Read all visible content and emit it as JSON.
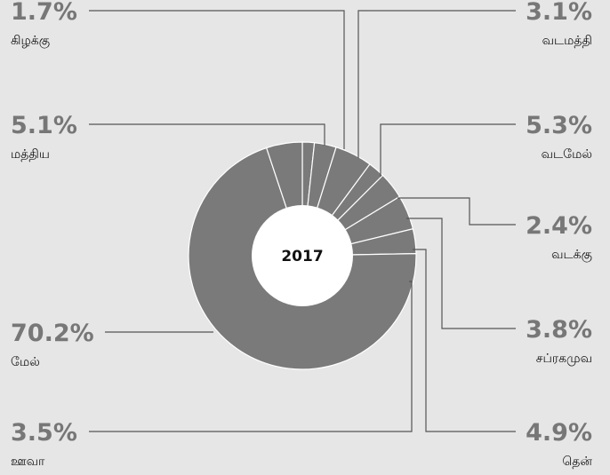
{
  "chart_data": {
    "type": "pie",
    "variant": "donut",
    "center_label": "2017",
    "unit": "%",
    "slices": [
      {
        "label": "கிழக்கு",
        "value": 1.7,
        "value_text": "1.7%"
      },
      {
        "label": "வடமத்தி",
        "value": 3.1,
        "value_text": "3.1%"
      },
      {
        "label": "வடமேல்",
        "value": 5.3,
        "value_text": "5.3%"
      },
      {
        "label": "வடக்கு",
        "value": 2.4,
        "value_text": "2.4%"
      },
      {
        "label": "சப்ரகமுவ",
        "value": 3.8,
        "value_text": "3.8%"
      },
      {
        "label": "தென்",
        "value": 4.9,
        "value_text": "4.9%"
      },
      {
        "label": "ஊவா",
        "value": 3.5,
        "value_text": "3.5%"
      },
      {
        "label": "மேல்",
        "value": 70.2,
        "value_text": "70.2%"
      },
      {
        "label": "மத்திய",
        "value": 5.1,
        "value_text": "5.1%"
      }
    ],
    "colors": {
      "background": "#e6e6e6",
      "slice": "#7a7a7a",
      "slice_border": "#ffffff",
      "hole": "#ffffff",
      "leader": "#555555",
      "value_text": "#777777",
      "label_text": "#111111"
    }
  }
}
